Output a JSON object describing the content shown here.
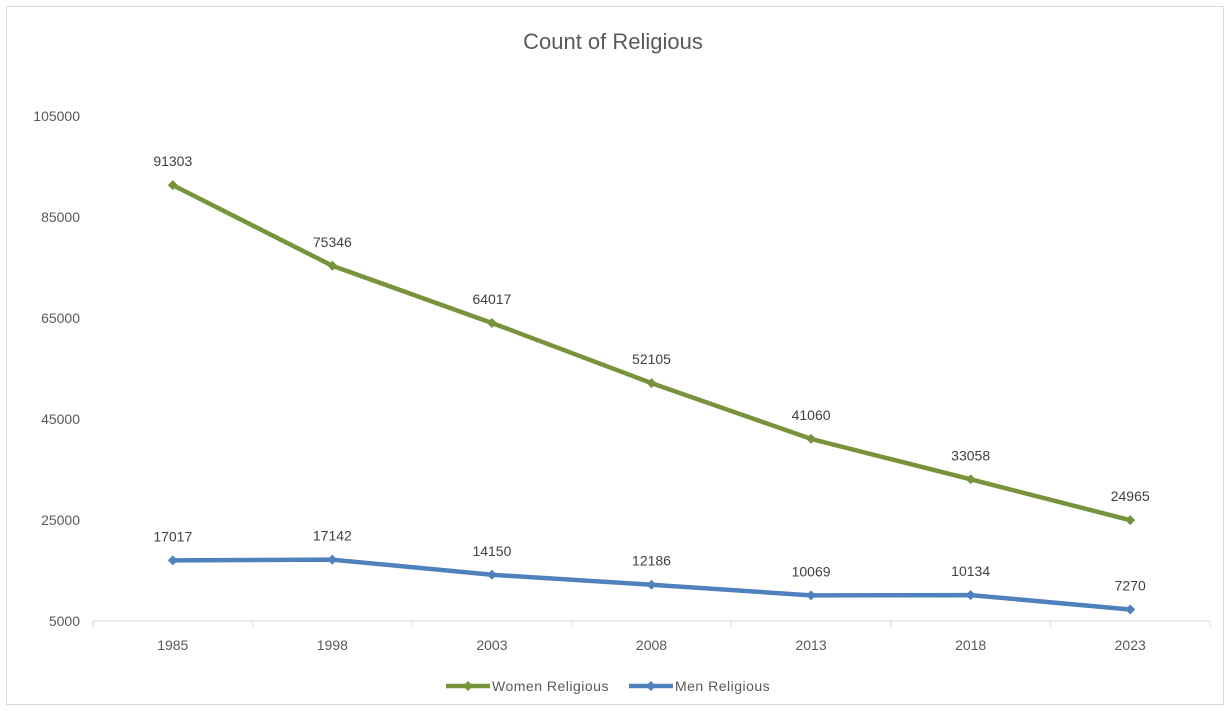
{
  "chart_data": {
    "type": "line",
    "title": "Count of Religious",
    "xlabel": "",
    "ylabel": "",
    "categories": [
      "1985",
      "1998",
      "2003",
      "2008",
      "2013",
      "2018",
      "2023"
    ],
    "yticks": [
      5000,
      25000,
      45000,
      65000,
      85000,
      105000
    ],
    "ylim": [
      5000,
      105000
    ],
    "grid": false,
    "legend_position": "bottom",
    "series": [
      {
        "name": "Women  Religious",
        "color": "#77933c",
        "marker": "diamond",
        "values": [
          91303,
          75346,
          64017,
          52105,
          41060,
          33058,
          24965
        ]
      },
      {
        "name": "Men Religious",
        "color": "#4f81bd",
        "marker": "diamond",
        "values": [
          17017,
          17142,
          14150,
          12186,
          10069,
          10134,
          7270
        ]
      }
    ]
  }
}
